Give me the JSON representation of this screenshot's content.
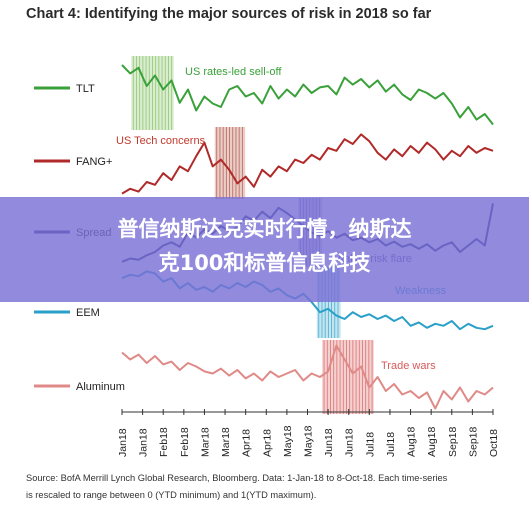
{
  "chart_data": {
    "type": "line",
    "title": "Chart 4: Identifying the major sources of risk in 2018 so far",
    "x_tick_labels": [
      "Jan18",
      "Jan18",
      "Feb18",
      "Feb18",
      "Mar18",
      "Mar18",
      "Apr18",
      "Apr18",
      "May18",
      "May18",
      "Jun18",
      "Jun18",
      "Jul18",
      "Jul18",
      "Aug18",
      "Aug18",
      "Sep18",
      "Sep18",
      "Oct18"
    ],
    "x_range": [
      "2018-01-01",
      "2018-10-08"
    ],
    "y_range": [
      0,
      1
    ],
    "series": [
      {
        "name": "TLT",
        "color": "#3aa13a",
        "values": [
          0.9,
          0.78,
          0.86,
          0.6,
          0.75,
          0.55,
          0.68,
          0.36,
          0.55,
          0.25,
          0.45,
          0.35,
          0.3,
          0.55,
          0.6,
          0.45,
          0.5,
          0.35,
          0.6,
          0.42,
          0.55,
          0.45,
          0.62,
          0.5,
          0.58,
          0.6,
          0.48,
          0.72,
          0.62,
          0.7,
          0.58,
          0.68,
          0.52,
          0.62,
          0.48,
          0.4,
          0.55,
          0.5,
          0.42,
          0.5,
          0.35,
          0.15,
          0.3,
          0.12,
          0.2,
          0.05
        ]
      },
      {
        "name": "FANG+",
        "color": "#b02a2a",
        "values": [
          0.05,
          0.12,
          0.08,
          0.22,
          0.18,
          0.35,
          0.25,
          0.45,
          0.38,
          0.6,
          0.8,
          0.45,
          0.55,
          0.4,
          0.2,
          0.3,
          0.15,
          0.4,
          0.3,
          0.45,
          0.38,
          0.55,
          0.5,
          0.62,
          0.55,
          0.72,
          0.68,
          0.85,
          0.78,
          0.92,
          0.82,
          0.65,
          0.55,
          0.7,
          0.6,
          0.75,
          0.65,
          0.8,
          0.7,
          0.55,
          0.68,
          0.6,
          0.75,
          0.65,
          0.72,
          0.68
        ]
      },
      {
        "name": "HY Spread",
        "color": "#1f2a73",
        "values": [
          0.05,
          0.1,
          0.08,
          0.15,
          0.2,
          0.3,
          0.35,
          0.28,
          0.5,
          0.42,
          0.55,
          0.48,
          0.6,
          0.52,
          0.58,
          0.75,
          0.68,
          0.82,
          0.72,
          0.88,
          0.8,
          0.7,
          0.6,
          0.5,
          0.45,
          0.52,
          0.42,
          0.48,
          0.38,
          0.42,
          0.35,
          0.4,
          0.3,
          0.36,
          0.28,
          0.32,
          0.25,
          0.32,
          0.22,
          0.3,
          0.35,
          0.2,
          0.3,
          0.4,
          0.3,
          0.95
        ]
      },
      {
        "name": "EEM",
        "color": "#2aa0c8",
        "values": [
          0.85,
          0.9,
          0.88,
          0.95,
          0.92,
          0.8,
          0.85,
          0.7,
          0.78,
          0.68,
          0.72,
          0.65,
          0.75,
          0.7,
          0.78,
          0.72,
          0.8,
          0.75,
          0.65,
          0.7,
          0.6,
          0.55,
          0.62,
          0.5,
          0.35,
          0.4,
          0.3,
          0.25,
          0.35,
          0.28,
          0.32,
          0.25,
          0.3,
          0.22,
          0.28,
          0.15,
          0.2,
          0.12,
          0.18,
          0.15,
          0.22,
          0.1,
          0.18,
          0.12,
          0.1,
          0.15
        ]
      },
      {
        "name": "Aluminum",
        "color": "#e08a88",
        "values": [
          0.85,
          0.75,
          0.82,
          0.7,
          0.8,
          0.68,
          0.72,
          0.6,
          0.7,
          0.65,
          0.58,
          0.55,
          0.62,
          0.52,
          0.6,
          0.48,
          0.55,
          0.45,
          0.58,
          0.5,
          0.55,
          0.6,
          0.45,
          0.55,
          0.5,
          0.58,
          0.95,
          0.75,
          0.55,
          0.65,
          0.35,
          0.5,
          0.3,
          0.4,
          0.25,
          0.3,
          0.2,
          0.28,
          0.05,
          0.3,
          0.18,
          0.35,
          0.15,
          0.3,
          0.25,
          0.35
        ]
      }
    ],
    "shaded_periods": [
      {
        "label": "US rates-led sell-off",
        "color": "#7cbd5a",
        "start": "2018-01-08",
        "end": "2018-02-09",
        "row": 0
      },
      {
        "label": "US Tech concerns",
        "color": "#b04a3a",
        "start": "2018-03-12",
        "end": "2018-04-04",
        "row": 1
      },
      {
        "label": "Italian risk flare",
        "color": "#5a5aa8",
        "start": "2018-05-14",
        "end": "2018-06-01",
        "row": 2
      },
      {
        "label": "Weakness",
        "color": "#2aa0c8",
        "start": "2018-05-28",
        "end": "2018-06-15",
        "row": 3
      },
      {
        "label": "Trade wars",
        "color": "#d85a5a",
        "start": "2018-06-01",
        "end": "2018-07-10",
        "row": 4
      }
    ],
    "annotations": {
      "us_rates": "US rates-led sell-off",
      "us_tech": "US Tech concerns",
      "italian": "Italian risk flare",
      "weakness": "Weakness",
      "trade_wars": "Trade wars"
    }
  },
  "overlay": {
    "line1": "普信纳斯达克实时行情，纳斯达",
    "line2": "克100和标普信息科技"
  },
  "source": {
    "line1": "Source:  BofA Merrill Lynch Global Research, Bloomberg. Data: 1-Jan-18 to 8-Oct-18. Each time-series",
    "line2": "is rescaled to range between 0 (YTD minimum) and 1(YTD maximum)."
  },
  "labels": {
    "tlt": "TLT",
    "fang": "FANG+",
    "hy": "Spread",
    "eem": "EEM",
    "alu": "Aluminum"
  }
}
